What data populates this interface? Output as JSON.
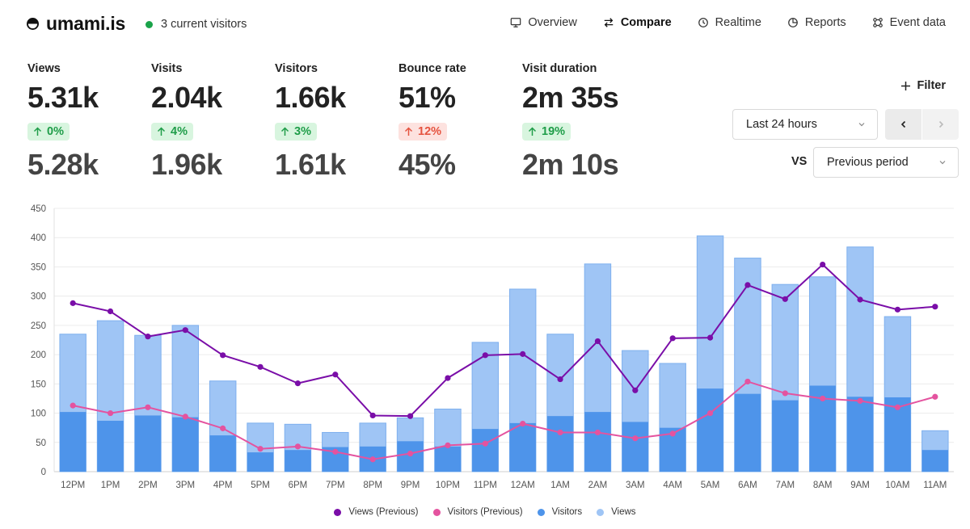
{
  "header": {
    "brand": "umami.is",
    "live_visitors": "3 current visitors",
    "colors": {
      "live": "#1aa34a"
    },
    "nav": [
      {
        "key": "overview",
        "label": "Overview",
        "icon": "monitor-icon",
        "active": false
      },
      {
        "key": "compare",
        "label": "Compare",
        "icon": "compare-arrows-icon",
        "active": true
      },
      {
        "key": "realtime",
        "label": "Realtime",
        "icon": "clock-icon",
        "active": false
      },
      {
        "key": "reports",
        "label": "Reports",
        "icon": "pie-chart-icon",
        "active": false
      },
      {
        "key": "event-data",
        "label": "Event data",
        "icon": "nodes-icon",
        "active": false
      }
    ]
  },
  "metrics": [
    {
      "label": "Views",
      "value": "5.31k",
      "change": "0%",
      "trend": "up",
      "previous": "5.28k"
    },
    {
      "label": "Visits",
      "value": "2.04k",
      "change": "4%",
      "trend": "up",
      "previous": "1.96k"
    },
    {
      "label": "Visitors",
      "value": "1.66k",
      "change": "3%",
      "trend": "up",
      "previous": "1.61k"
    },
    {
      "label": "Bounce rate",
      "value": "51%",
      "change": "12%",
      "trend": "bad",
      "previous": "45%"
    },
    {
      "label": "Visit duration",
      "value": "2m 35s",
      "change": "19%",
      "trend": "up",
      "previous": "2m 10s"
    }
  ],
  "controls": {
    "filter_label": "Filter",
    "date_range": "Last 24 hours",
    "vs_label": "VS",
    "compare_period": "Previous period"
  },
  "chart_data": {
    "type": "bar",
    "title": "",
    "xlabel": "",
    "ylabel": "",
    "ylim": [
      0,
      450
    ],
    "yticks": [
      0,
      50,
      100,
      150,
      200,
      250,
      300,
      350,
      400,
      450
    ],
    "categories": [
      "12PM",
      "1PM",
      "2PM",
      "3PM",
      "4PM",
      "5PM",
      "6PM",
      "7PM",
      "8PM",
      "9PM",
      "10PM",
      "11PM",
      "12AM",
      "1AM",
      "2AM",
      "3AM",
      "4AM",
      "5AM",
      "6AM",
      "7AM",
      "8AM",
      "9AM",
      "10AM",
      "11AM"
    ],
    "series": [
      {
        "name": "Views (Previous)",
        "kind": "line",
        "color": "#7a0ea8",
        "values": [
          288,
          274,
          231,
          242,
          199,
          179,
          151,
          166,
          96,
          95,
          160,
          199,
          201,
          158,
          223,
          139,
          228,
          229,
          319,
          295,
          354,
          294,
          277,
          282
        ]
      },
      {
        "name": "Visitors (Previous)",
        "kind": "line",
        "color": "#e4539f",
        "values": [
          113,
          100,
          110,
          94,
          74,
          39,
          43,
          34,
          21,
          31,
          45,
          48,
          82,
          67,
          67,
          57,
          65,
          100,
          154,
          134,
          125,
          121,
          110,
          128
        ]
      },
      {
        "name": "Visitors",
        "kind": "bar",
        "color": "#4e94ea",
        "values": [
          102,
          87,
          96,
          93,
          62,
          33,
          37,
          42,
          43,
          52,
          43,
          73,
          83,
          95,
          102,
          85,
          75,
          142,
          133,
          122,
          147,
          128,
          127,
          37
        ]
      },
      {
        "name": "Views",
        "kind": "bar",
        "color": "#9fc5f5",
        "values": [
          235,
          258,
          233,
          250,
          155,
          83,
          81,
          67,
          83,
          92,
          107,
          221,
          312,
          235,
          355,
          207,
          185,
          403,
          365,
          320,
          333,
          384,
          265,
          70
        ]
      }
    ],
    "legend_position": "bottom-center",
    "grid": true
  }
}
